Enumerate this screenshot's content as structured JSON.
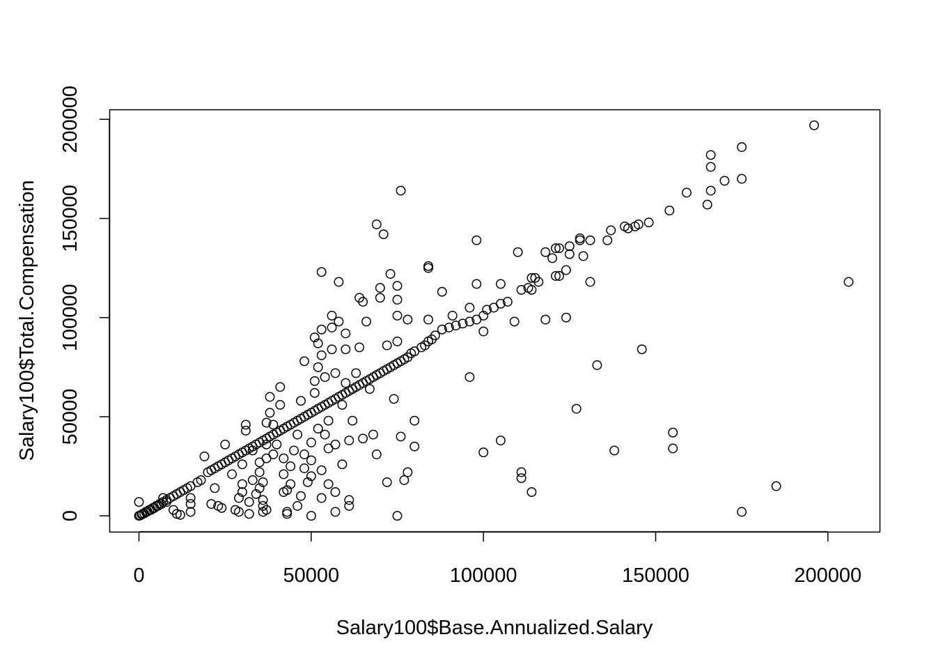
{
  "colors": {
    "background": "#ffffff",
    "foreground": "#000000"
  },
  "chart_data": {
    "type": "scatter",
    "title": "",
    "xlabel": "Salary100$Base.Annualized.Salary",
    "ylabel": "Salary100$Total.Compensation",
    "xlim": [
      -8600,
      215000
    ],
    "ylim": [
      -8000,
      205000
    ],
    "x_ticks": [
      0,
      50000,
      100000,
      150000,
      200000
    ],
    "x_tick_labels": [
      "0",
      "50000",
      "100000",
      "150000",
      "200000"
    ],
    "y_ticks": [
      0,
      50000,
      100000,
      150000,
      200000
    ],
    "y_tick_labels": [
      "0",
      "50000",
      "100000",
      "150000",
      "200000"
    ],
    "grid": false,
    "legend": false,
    "marker": "open-circle",
    "points": [
      [
        196000,
        197000
      ],
      [
        175000,
        186000
      ],
      [
        166000,
        182000
      ],
      [
        166000,
        176000
      ],
      [
        175000,
        170000
      ],
      [
        170000,
        169000
      ],
      [
        166000,
        164000
      ],
      [
        159000,
        163000
      ],
      [
        165000,
        157000
      ],
      [
        154000,
        154000
      ],
      [
        148000,
        148000
      ],
      [
        145000,
        147000
      ],
      [
        144000,
        146000
      ],
      [
        141000,
        146000
      ],
      [
        142000,
        145000
      ],
      [
        137000,
        144000
      ],
      [
        136000,
        139000
      ],
      [
        131000,
        139000
      ],
      [
        128000,
        140000
      ],
      [
        128000,
        139000
      ],
      [
        125000,
        136000
      ],
      [
        122000,
        135000
      ],
      [
        121000,
        135000
      ],
      [
        118000,
        133000
      ],
      [
        125000,
        132000
      ],
      [
        129000,
        131000
      ],
      [
        120000,
        130000
      ],
      [
        114000,
        120000
      ],
      [
        115000,
        120000
      ],
      [
        116000,
        118000
      ],
      [
        113000,
        115000
      ],
      [
        114000,
        114000
      ],
      [
        111000,
        114000
      ],
      [
        124000,
        124000
      ],
      [
        121000,
        121000
      ],
      [
        122000,
        121000
      ],
      [
        107000,
        108000
      ],
      [
        105000,
        107000
      ],
      [
        103000,
        105000
      ],
      [
        101000,
        104000
      ],
      [
        100000,
        101000
      ],
      [
        98000,
        99000
      ],
      [
        96000,
        98000
      ],
      [
        94000,
        97000
      ],
      [
        92000,
        96000
      ],
      [
        90000,
        95000
      ],
      [
        88000,
        94000
      ],
      [
        86000,
        91000
      ],
      [
        85000,
        89000
      ],
      [
        84000,
        88000
      ],
      [
        83000,
        86000
      ],
      [
        82000,
        85000
      ],
      [
        80000,
        83000
      ],
      [
        79000,
        82000
      ],
      [
        78000,
        80000
      ],
      [
        77000,
        79000
      ],
      [
        76000,
        78000
      ],
      [
        75000,
        77000
      ],
      [
        74000,
        76000
      ],
      [
        73000,
        75000
      ],
      [
        72000,
        74000
      ],
      [
        71000,
        73000
      ],
      [
        70000,
        72000
      ],
      [
        69000,
        71000
      ],
      [
        68000,
        70000
      ],
      [
        67000,
        69000
      ],
      [
        66000,
        68000
      ],
      [
        65000,
        67000
      ],
      [
        64000,
        66000
      ],
      [
        63000,
        65000
      ],
      [
        62000,
        64000
      ],
      [
        61000,
        63000
      ],
      [
        60000,
        62000
      ],
      [
        59000,
        61000
      ],
      [
        58000,
        60000
      ],
      [
        57000,
        59000
      ],
      [
        56000,
        58000
      ],
      [
        55000,
        57000
      ],
      [
        54000,
        56000
      ],
      [
        53000,
        55000
      ],
      [
        52000,
        54000
      ],
      [
        51000,
        53000
      ],
      [
        50000,
        52000
      ],
      [
        49000,
        51000
      ],
      [
        48000,
        50000
      ],
      [
        47000,
        49000
      ],
      [
        46000,
        48000
      ],
      [
        45000,
        47000
      ],
      [
        44000,
        46000
      ],
      [
        43000,
        45000
      ],
      [
        42000,
        44000
      ],
      [
        41000,
        43000
      ],
      [
        40000,
        42000
      ],
      [
        39000,
        41000
      ],
      [
        38000,
        40000
      ],
      [
        37000,
        39000
      ],
      [
        36000,
        38000
      ],
      [
        35000,
        37000
      ],
      [
        34000,
        36000
      ],
      [
        33000,
        35000
      ],
      [
        32000,
        34000
      ],
      [
        31000,
        33000
      ],
      [
        30000,
        32000
      ],
      [
        29000,
        31000
      ],
      [
        28000,
        30000
      ],
      [
        27000,
        29000
      ],
      [
        26000,
        28000
      ],
      [
        25000,
        27000
      ],
      [
        24000,
        26000
      ],
      [
        23000,
        25000
      ],
      [
        22000,
        24000
      ],
      [
        21000,
        23000
      ],
      [
        20000,
        22000
      ],
      [
        18000,
        18000
      ],
      [
        17000,
        17000
      ],
      [
        15000,
        15000
      ],
      [
        14000,
        14000
      ],
      [
        13000,
        13000
      ],
      [
        12000,
        12000
      ],
      [
        11000,
        11000
      ],
      [
        10000,
        10000
      ],
      [
        9000,
        9000
      ],
      [
        8000,
        8000
      ],
      [
        7000,
        7000
      ],
      [
        6000,
        6000
      ],
      [
        5000,
        5000
      ],
      [
        4000,
        4000
      ],
      [
        3000,
        3000
      ],
      [
        2000,
        2000
      ],
      [
        1000,
        1000
      ],
      [
        0,
        0
      ],
      [
        0,
        7000
      ],
      [
        300,
        200
      ],
      [
        800,
        600
      ],
      [
        1500,
        1200
      ],
      [
        2500,
        2200
      ],
      [
        3500,
        3000
      ],
      [
        4500,
        4000
      ],
      [
        5500,
        5000
      ],
      [
        6500,
        6000
      ],
      [
        7000,
        9000
      ],
      [
        8000,
        7000
      ],
      [
        10000,
        3000
      ],
      [
        11000,
        1000
      ],
      [
        12000,
        500
      ],
      [
        15000,
        2000
      ],
      [
        15000,
        6000
      ],
      [
        15000,
        9000
      ],
      [
        19000,
        30000
      ],
      [
        21000,
        6000
      ],
      [
        22000,
        14000
      ],
      [
        23000,
        5000
      ],
      [
        24000,
        4000
      ],
      [
        25000,
        36000
      ],
      [
        27000,
        21000
      ],
      [
        28000,
        3000
      ],
      [
        29000,
        2000
      ],
      [
        29000,
        9000
      ],
      [
        30000,
        12000
      ],
      [
        30000,
        16000
      ],
      [
        30000,
        26000
      ],
      [
        31000,
        43000
      ],
      [
        31000,
        46000
      ],
      [
        32000,
        1000
      ],
      [
        32000,
        7000
      ],
      [
        33000,
        18000
      ],
      [
        33000,
        33000
      ],
      [
        34000,
        11000
      ],
      [
        35000,
        14000
      ],
      [
        35000,
        22000
      ],
      [
        35000,
        27000
      ],
      [
        36000,
        2000
      ],
      [
        36000,
        5000
      ],
      [
        36000,
        8000
      ],
      [
        36000,
        17000
      ],
      [
        37000,
        3000
      ],
      [
        37000,
        29000
      ],
      [
        37000,
        36000
      ],
      [
        37000,
        47000
      ],
      [
        38000,
        52000
      ],
      [
        38000,
        60000
      ],
      [
        39000,
        31000
      ],
      [
        39000,
        46000
      ],
      [
        40000,
        36000
      ],
      [
        41000,
        56000
      ],
      [
        41000,
        65000
      ],
      [
        42000,
        12000
      ],
      [
        42000,
        21000
      ],
      [
        42000,
        29000
      ],
      [
        43000,
        1000
      ],
      [
        43000,
        2000
      ],
      [
        43000,
        13000
      ],
      [
        44000,
        16000
      ],
      [
        44000,
        25000
      ],
      [
        45000,
        33000
      ],
      [
        46000,
        5000
      ],
      [
        46000,
        41000
      ],
      [
        47000,
        10000
      ],
      [
        47000,
        58000
      ],
      [
        48000,
        24000
      ],
      [
        48000,
        31000
      ],
      [
        48000,
        78000
      ],
      [
        49000,
        17000
      ],
      [
        50000,
        0
      ],
      [
        50000,
        20000
      ],
      [
        50000,
        28000
      ],
      [
        50000,
        37000
      ],
      [
        51000,
        62000
      ],
      [
        51000,
        68000
      ],
      [
        51000,
        90000
      ],
      [
        52000,
        44000
      ],
      [
        52000,
        75000
      ],
      [
        52000,
        87000
      ],
      [
        53000,
        9000
      ],
      [
        53000,
        23000
      ],
      [
        53000,
        81000
      ],
      [
        53000,
        94000
      ],
      [
        53000,
        123000
      ],
      [
        54000,
        41000
      ],
      [
        54000,
        70000
      ],
      [
        55000,
        16000
      ],
      [
        55000,
        34000
      ],
      [
        55000,
        48000
      ],
      [
        56000,
        84000
      ],
      [
        56000,
        95000
      ],
      [
        56000,
        101000
      ],
      [
        57000,
        2000
      ],
      [
        57000,
        12000
      ],
      [
        57000,
        36000
      ],
      [
        57000,
        72000
      ],
      [
        58000,
        98000
      ],
      [
        58000,
        118000
      ],
      [
        59000,
        26000
      ],
      [
        59000,
        56000
      ],
      [
        60000,
        67000
      ],
      [
        60000,
        84000
      ],
      [
        60000,
        92000
      ],
      [
        61000,
        5000
      ],
      [
        61000,
        8000
      ],
      [
        61000,
        38000
      ],
      [
        62000,
        48000
      ],
      [
        63000,
        72000
      ],
      [
        64000,
        85000
      ],
      [
        64000,
        110000
      ],
      [
        65000,
        39000
      ],
      [
        65000,
        108000
      ],
      [
        66000,
        98000
      ],
      [
        67000,
        64000
      ],
      [
        68000,
        41000
      ],
      [
        69000,
        31000
      ],
      [
        69000,
        147000
      ],
      [
        70000,
        110000
      ],
      [
        70000,
        115000
      ],
      [
        71000,
        142000
      ],
      [
        72000,
        17000
      ],
      [
        72000,
        86000
      ],
      [
        73000,
        122000
      ],
      [
        74000,
        59000
      ],
      [
        75000,
        0
      ],
      [
        75000,
        88000
      ],
      [
        75000,
        101000
      ],
      [
        75000,
        109000
      ],
      [
        75000,
        116000
      ],
      [
        76000,
        40000
      ],
      [
        76000,
        164000
      ],
      [
        77000,
        18000
      ],
      [
        78000,
        22000
      ],
      [
        78000,
        99000
      ],
      [
        80000,
        48000
      ],
      [
        80000,
        35000
      ],
      [
        84000,
        125000
      ],
      [
        84000,
        126000
      ],
      [
        84000,
        99000
      ],
      [
        88000,
        113000
      ],
      [
        91000,
        101000
      ],
      [
        96000,
        70000
      ],
      [
        96000,
        105000
      ],
      [
        98000,
        117000
      ],
      [
        98000,
        139000
      ],
      [
        100000,
        93000
      ],
      [
        100000,
        32000
      ],
      [
        105000,
        38000
      ],
      [
        105000,
        117000
      ],
      [
        109000,
        98000
      ],
      [
        110000,
        133000
      ],
      [
        111000,
        22000
      ],
      [
        111000,
        19000
      ],
      [
        114000,
        12000
      ],
      [
        118000,
        99000
      ],
      [
        124000,
        100000
      ],
      [
        127000,
        54000
      ],
      [
        131000,
        118000
      ],
      [
        133000,
        76000
      ],
      [
        138000,
        33000
      ],
      [
        146000,
        84000
      ],
      [
        155000,
        42000
      ],
      [
        155000,
        34000
      ],
      [
        175000,
        2000
      ],
      [
        185000,
        15000
      ],
      [
        206000,
        118000
      ]
    ]
  }
}
